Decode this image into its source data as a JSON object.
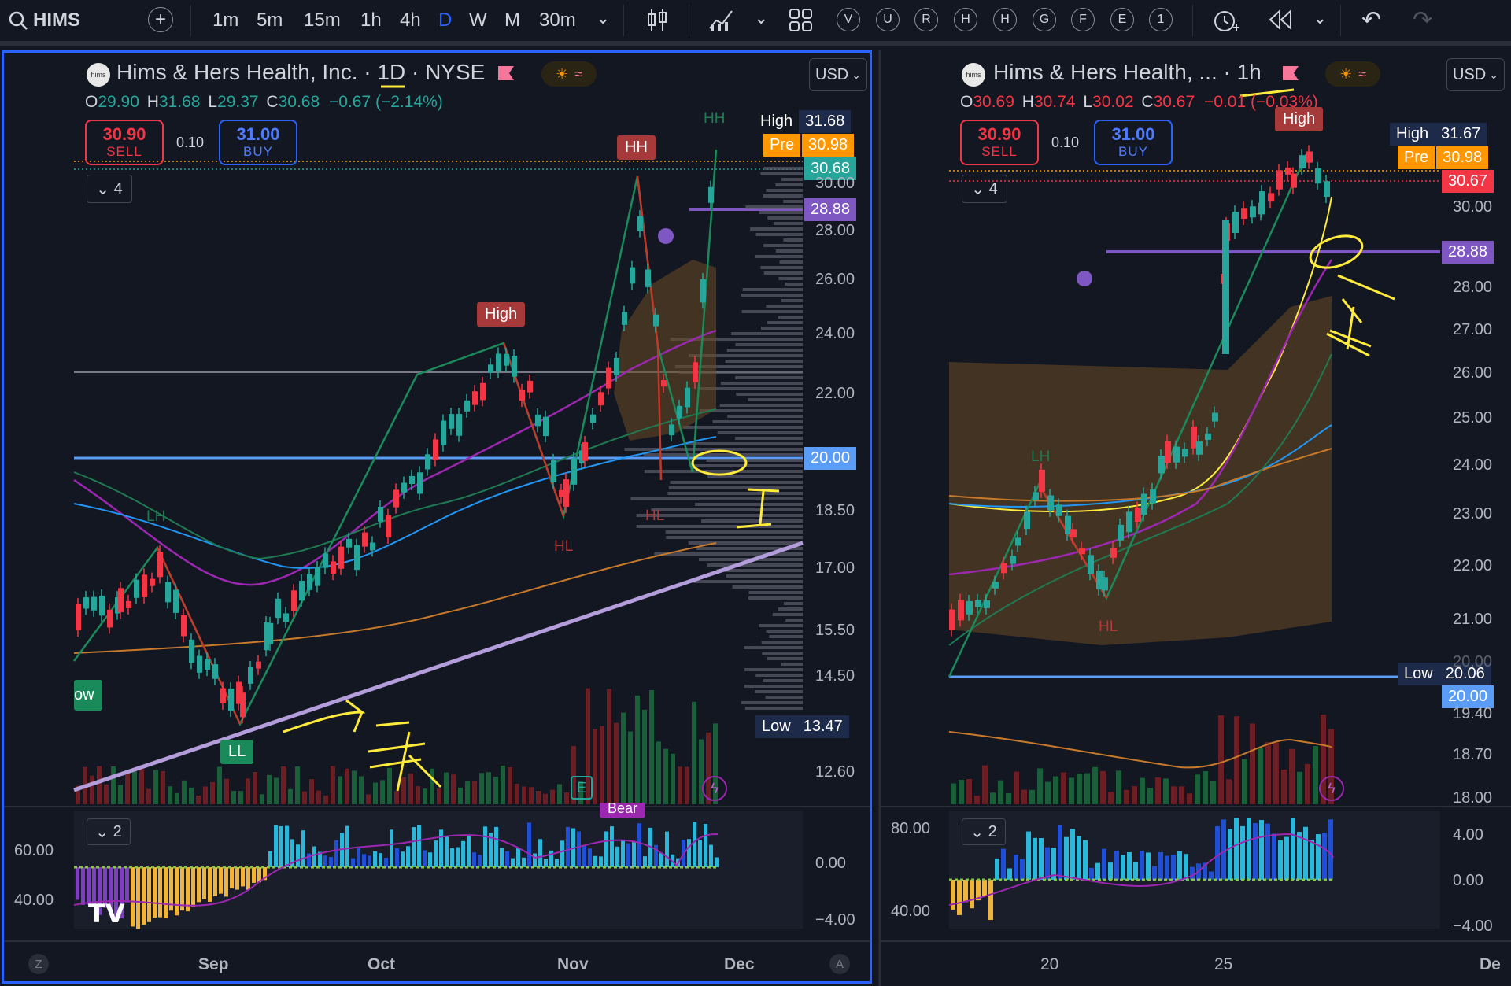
{
  "toolbar": {
    "symbol": "HIMS",
    "timeframes": [
      "1m",
      "5m",
      "15m",
      "1h",
      "4h",
      "D",
      "W",
      "M",
      "30m"
    ],
    "active_timeframe": "D",
    "indicator_shortcuts": [
      "V",
      "U",
      "R",
      "H",
      "H",
      "G",
      "F",
      "E",
      "1"
    ]
  },
  "left": {
    "title": "Hims & Hers Health, Inc. · 1D · NYSE",
    "ohlc": {
      "o": "29.90",
      "h": "31.68",
      "l": "29.37",
      "c": "30.68",
      "chg": "−0.67 (−2.14%)"
    },
    "sell": {
      "price": "30.90",
      "label": "SELL"
    },
    "spread": "0.10",
    "buy": {
      "price": "31.00",
      "label": "BUY"
    },
    "currency": "USD",
    "collapse_count": "4",
    "tags": {
      "high": {
        "label": "High",
        "value": "31.68"
      },
      "pre": {
        "label": "Pre",
        "value": "30.98"
      },
      "last": "30.68",
      "level": "28.88",
      "support": "20.00",
      "low": {
        "label": "Low",
        "value": "13.47"
      }
    },
    "y_axis": [
      "30.00",
      "28.00",
      "26.00",
      "24.00",
      "22.00",
      "18.50",
      "17.00",
      "15.50",
      "14.50",
      "12.60"
    ],
    "labels": {
      "hh_box": "HH",
      "hh_text": "HH",
      "high_box": "High",
      "lh": "LH",
      "hl1": "HL",
      "hl2": "HL",
      "ll": "LL",
      "low_tag": "ow",
      "earnings": "E",
      "bear": "Bear"
    },
    "osc": {
      "collapse_count": "2",
      "left_axis": [
        "60.00",
        "40.00"
      ],
      "right_axis": [
        "0.00",
        "−4.00"
      ]
    },
    "x_axis": [
      "Sep",
      "Oct",
      "Nov",
      "Dec"
    ],
    "corner_left": "Z",
    "corner_right": "A"
  },
  "right": {
    "title": "Hims & Hers Health, ... · 1h",
    "ohlc": {
      "o": "30.69",
      "h": "30.74",
      "l": "30.02",
      "c": "30.67",
      "chg": "−0.01 (−0.03%)"
    },
    "sell": {
      "price": "30.90",
      "label": "SELL"
    },
    "spread": "0.10",
    "buy": {
      "price": "31.00",
      "label": "BUY"
    },
    "currency": "USD",
    "collapse_count": "4",
    "tags": {
      "high": {
        "label": "High",
        "value": "31.67"
      },
      "pre": {
        "label": "Pre",
        "value": "30.98"
      },
      "last": "30.67",
      "level": "28.88",
      "low": {
        "label": "Low",
        "value": "20.06"
      },
      "support": "20.00"
    },
    "y_axis": [
      "30.00",
      "28.00",
      "27.00",
      "26.00",
      "25.00",
      "24.00",
      "23.00",
      "22.00",
      "21.00",
      "20.00",
      "19.40",
      "18.70",
      "18.00"
    ],
    "labels": {
      "high_box": "High",
      "lh": "LH",
      "hl": "HL"
    },
    "osc": {
      "collapse_count": "2",
      "left_axis": [
        "80.00",
        "40.00"
      ],
      "right_axis": [
        "4.00",
        "0.00",
        "−4.00"
      ]
    },
    "x_axis": [
      "20",
      "25",
      "De"
    ]
  },
  "colors": {
    "background": "#131722",
    "up": "#26a69a",
    "down": "#f23645",
    "support_line": "#5b9cf6",
    "level_line": "#7e57c2",
    "trendline": "#b39ddb",
    "annotation": "#ffeb3b"
  }
}
